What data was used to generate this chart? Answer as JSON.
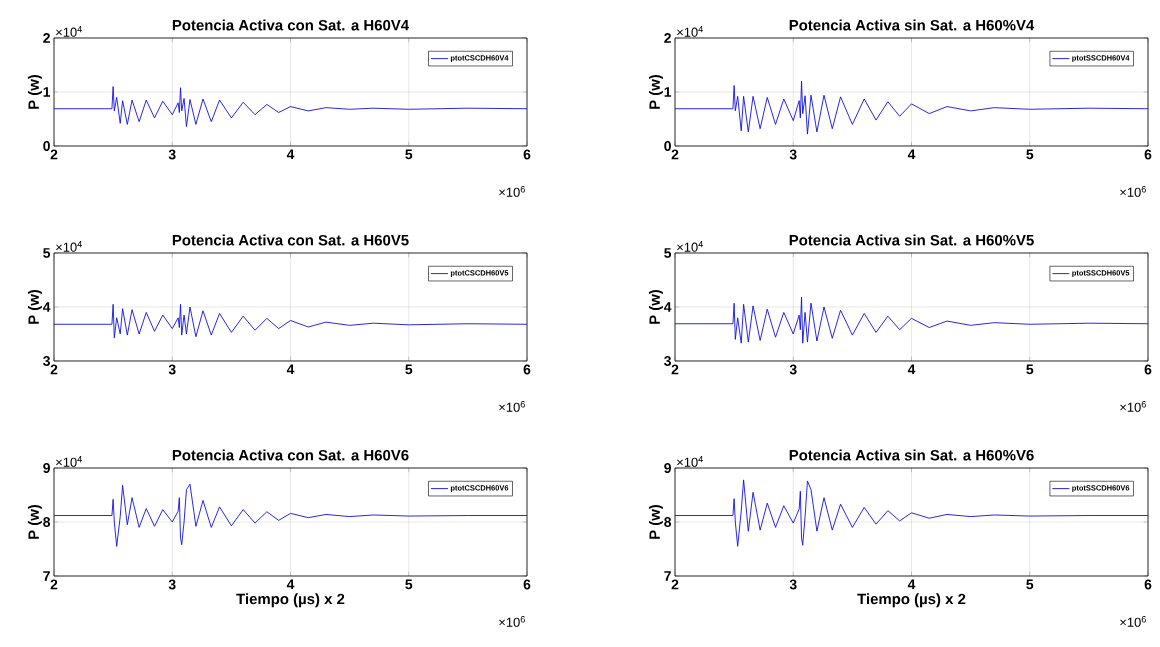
{
  "chart_data": [
    {
      "type": "line",
      "title": "Potencia Activa con Sat. a H60V4",
      "ylabel": "P (w)",
      "annotations": [
        "×10$^{4}$",
        "×10$^{6}$"
      ],
      "x": [
        2,
        2.49,
        2.5,
        2.51,
        2.53,
        2.56,
        2.58,
        2.62,
        2.66,
        2.72,
        2.78,
        2.85,
        2.92,
        3,
        3.05,
        3.06,
        3.07,
        3.08,
        3.1,
        3.12,
        3.15,
        3.2,
        3.26,
        3.33,
        3.4,
        3.5,
        3.6,
        3.7,
        3.8,
        3.9,
        4,
        4.15,
        4.3,
        4.5,
        4.7,
        5,
        5.5,
        6
      ],
      "series": [
        {
          "name": "ptotCSCDH60V4",
          "color": "#1010e0",
          "values": [
            0.69,
            0.69,
            1.1,
            0.65,
            0.9,
            0.42,
            0.84,
            0.4,
            0.85,
            0.45,
            0.85,
            0.52,
            0.83,
            0.58,
            0.8,
            0.62,
            1.08,
            0.65,
            0.88,
            0.36,
            0.86,
            0.4,
            0.87,
            0.45,
            0.85,
            0.52,
            0.81,
            0.58,
            0.77,
            0.62,
            0.73,
            0.65,
            0.71,
            0.68,
            0.7,
            0.68,
            0.7,
            0.69
          ]
        }
      ],
      "xlim": [
        2,
        6
      ],
      "ylim": [
        0,
        2
      ],
      "xticks": [
        2,
        3,
        4,
        5,
        6
      ],
      "yticks": [
        0,
        1,
        2
      ],
      "grid": true,
      "legend": "top right"
    },
    {
      "type": "line",
      "title": "Potencia Activa sin Sat. a H60%V4",
      "ylabel": "P (w)",
      "annotations": [
        "×10$^{4}$",
        "×10$^{6}$"
      ],
      "x": [
        2,
        2.49,
        2.5,
        2.51,
        2.53,
        2.56,
        2.58,
        2.62,
        2.66,
        2.72,
        2.78,
        2.85,
        2.92,
        3,
        3.05,
        3.06,
        3.07,
        3.08,
        3.1,
        3.12,
        3.15,
        3.2,
        3.26,
        3.33,
        3.4,
        3.5,
        3.6,
        3.7,
        3.8,
        3.9,
        4,
        4.15,
        4.3,
        4.5,
        4.7,
        5,
        5.5,
        6
      ],
      "series": [
        {
          "name": "ptotSSCDH60V4",
          "color": "#1010e0",
          "values": [
            0.69,
            0.69,
            1.12,
            0.65,
            0.92,
            0.28,
            0.92,
            0.26,
            0.92,
            0.32,
            0.9,
            0.4,
            0.87,
            0.47,
            0.84,
            0.52,
            1.2,
            0.6,
            0.93,
            0.22,
            0.94,
            0.26,
            0.94,
            0.32,
            0.91,
            0.4,
            0.87,
            0.48,
            0.82,
            0.55,
            0.78,
            0.6,
            0.73,
            0.65,
            0.71,
            0.68,
            0.7,
            0.69
          ]
        }
      ],
      "xlim": [
        2,
        6
      ],
      "ylim": [
        0,
        2
      ],
      "xticks": [
        2,
        3,
        4,
        5,
        6
      ],
      "yticks": [
        0,
        1,
        2
      ],
      "grid": true,
      "legend": "top right"
    },
    {
      "type": "line",
      "title": "Potencia Activa con Sat. a H60V5",
      "ylabel": "P (w)",
      "annotations": [
        "×10$^{4}$",
        "×10$^{6}$"
      ],
      "x": [
        2,
        2.49,
        2.5,
        2.51,
        2.53,
        2.56,
        2.58,
        2.62,
        2.66,
        2.72,
        2.78,
        2.85,
        2.92,
        3,
        3.05,
        3.06,
        3.07,
        3.08,
        3.1,
        3.12,
        3.15,
        3.2,
        3.26,
        3.33,
        3.4,
        3.5,
        3.6,
        3.7,
        3.8,
        3.9,
        4,
        4.15,
        4.3,
        4.5,
        4.7,
        5,
        5.5,
        6
      ],
      "series": [
        {
          "name": "ptotCSCDH60V5",
          "color": "#1010e0",
          "values": [
            3.68,
            3.68,
            4.05,
            3.43,
            3.8,
            3.5,
            3.97,
            3.48,
            3.95,
            3.5,
            3.9,
            3.55,
            3.85,
            3.6,
            3.8,
            3.62,
            4.05,
            3.48,
            3.85,
            3.5,
            4.0,
            3.45,
            3.93,
            3.48,
            3.88,
            3.53,
            3.83,
            3.57,
            3.79,
            3.6,
            3.75,
            3.63,
            3.72,
            3.66,
            3.7,
            3.67,
            3.69,
            3.68
          ]
        }
      ],
      "xlim": [
        2,
        6
      ],
      "ylim": [
        3,
        5
      ],
      "xticks": [
        2,
        3,
        4,
        5,
        6
      ],
      "yticks": [
        3,
        4,
        5
      ],
      "grid": true,
      "legend": "top right"
    },
    {
      "type": "line",
      "title": "Potencia Activa sin Sat. a H60%V5",
      "ylabel": "P (w)",
      "annotations": [
        "×10$^{4}$",
        "×10$^{6}$"
      ],
      "x": [
        2,
        2.49,
        2.5,
        2.51,
        2.53,
        2.56,
        2.58,
        2.62,
        2.66,
        2.72,
        2.78,
        2.85,
        2.92,
        3,
        3.05,
        3.06,
        3.07,
        3.08,
        3.1,
        3.12,
        3.15,
        3.2,
        3.26,
        3.33,
        3.4,
        3.5,
        3.6,
        3.7,
        3.8,
        3.9,
        4,
        4.15,
        4.3,
        4.5,
        4.7,
        5,
        5.5,
        6
      ],
      "series": [
        {
          "name": "ptotSSCDH60V5",
          "color": "#1010e0",
          "values": [
            3.69,
            3.69,
            4.07,
            3.4,
            3.8,
            3.33,
            4.05,
            3.35,
            4.02,
            3.38,
            3.96,
            3.44,
            3.9,
            3.5,
            3.85,
            3.58,
            4.18,
            3.33,
            3.9,
            3.35,
            4.07,
            3.37,
            4.0,
            3.42,
            3.94,
            3.48,
            3.88,
            3.53,
            3.83,
            3.58,
            3.79,
            3.62,
            3.74,
            3.66,
            3.71,
            3.68,
            3.7,
            3.69
          ]
        }
      ],
      "xlim": [
        2,
        6
      ],
      "ylim": [
        3,
        5
      ],
      "xticks": [
        2,
        3,
        4,
        5,
        6
      ],
      "yticks": [
        3,
        4,
        5
      ],
      "grid": true,
      "legend": "top right"
    },
    {
      "type": "line",
      "title": "Potencia Activa con Sat. a H60V6",
      "xlabel": "Tiempo (µs) x 2",
      "ylabel": "P (w)",
      "annotations": [
        "×10$^{4}$",
        "×10$^{6}$"
      ],
      "x": [
        2,
        2.49,
        2.5,
        2.51,
        2.53,
        2.56,
        2.58,
        2.62,
        2.66,
        2.72,
        2.78,
        2.85,
        2.92,
        3,
        3.05,
        3.06,
        3.07,
        3.08,
        3.1,
        3.12,
        3.15,
        3.2,
        3.26,
        3.33,
        3.4,
        3.5,
        3.6,
        3.7,
        3.8,
        3.9,
        4,
        4.15,
        4.3,
        4.5,
        4.7,
        5,
        5.5,
        6
      ],
      "series": [
        {
          "name": "ptotCSCDH60V6",
          "color": "#1010e0",
          "values": [
            8.12,
            8.12,
            8.42,
            8.0,
            7.55,
            8.1,
            8.68,
            7.95,
            8.45,
            7.9,
            8.25,
            7.92,
            8.23,
            8.0,
            8.2,
            8.45,
            7.7,
            7.58,
            8.0,
            8.6,
            8.7,
            7.92,
            8.4,
            7.9,
            8.28,
            7.93,
            8.23,
            7.98,
            8.19,
            8.03,
            8.16,
            8.08,
            8.14,
            8.1,
            8.13,
            8.11,
            8.12,
            8.12
          ]
        }
      ],
      "xlim": [
        2,
        6
      ],
      "ylim": [
        7,
        9
      ],
      "xticks": [
        2,
        3,
        4,
        5,
        6
      ],
      "yticks": [
        7,
        8,
        9
      ],
      "grid": true,
      "legend": "top right"
    },
    {
      "type": "line",
      "title": "Potencia Activa sin Sat. a H60%V6",
      "xlabel": "Tiempo (µs) x 2",
      "ylabel": "P (w)",
      "annotations": [
        "×10$^{4}$",
        "×10$^{6}$"
      ],
      "x": [
        2,
        2.49,
        2.5,
        2.51,
        2.53,
        2.56,
        2.58,
        2.62,
        2.66,
        2.72,
        2.78,
        2.85,
        2.92,
        3,
        3.05,
        3.06,
        3.07,
        3.08,
        3.1,
        3.12,
        3.15,
        3.2,
        3.26,
        3.33,
        3.4,
        3.5,
        3.6,
        3.7,
        3.8,
        3.9,
        4,
        4.15,
        4.3,
        4.5,
        4.7,
        5,
        5.5,
        6
      ],
      "series": [
        {
          "name": "ptotSSCDH60V6",
          "color": "#1010e0",
          "values": [
            8.12,
            8.12,
            8.43,
            8.0,
            7.55,
            8.2,
            8.78,
            7.83,
            8.55,
            7.85,
            8.35,
            7.9,
            8.3,
            7.98,
            8.24,
            8.57,
            7.7,
            7.57,
            8.1,
            8.76,
            8.6,
            7.83,
            8.45,
            7.85,
            8.33,
            7.9,
            8.27,
            7.96,
            8.21,
            8.02,
            8.17,
            8.07,
            8.14,
            8.1,
            8.13,
            8.11,
            8.12,
            8.12
          ]
        }
      ],
      "xlim": [
        2,
        6
      ],
      "ylim": [
        7,
        9
      ],
      "xticks": [
        2,
        3,
        4,
        5,
        6
      ],
      "yticks": [
        7,
        8,
        9
      ],
      "grid": true,
      "legend": "top right"
    }
  ]
}
